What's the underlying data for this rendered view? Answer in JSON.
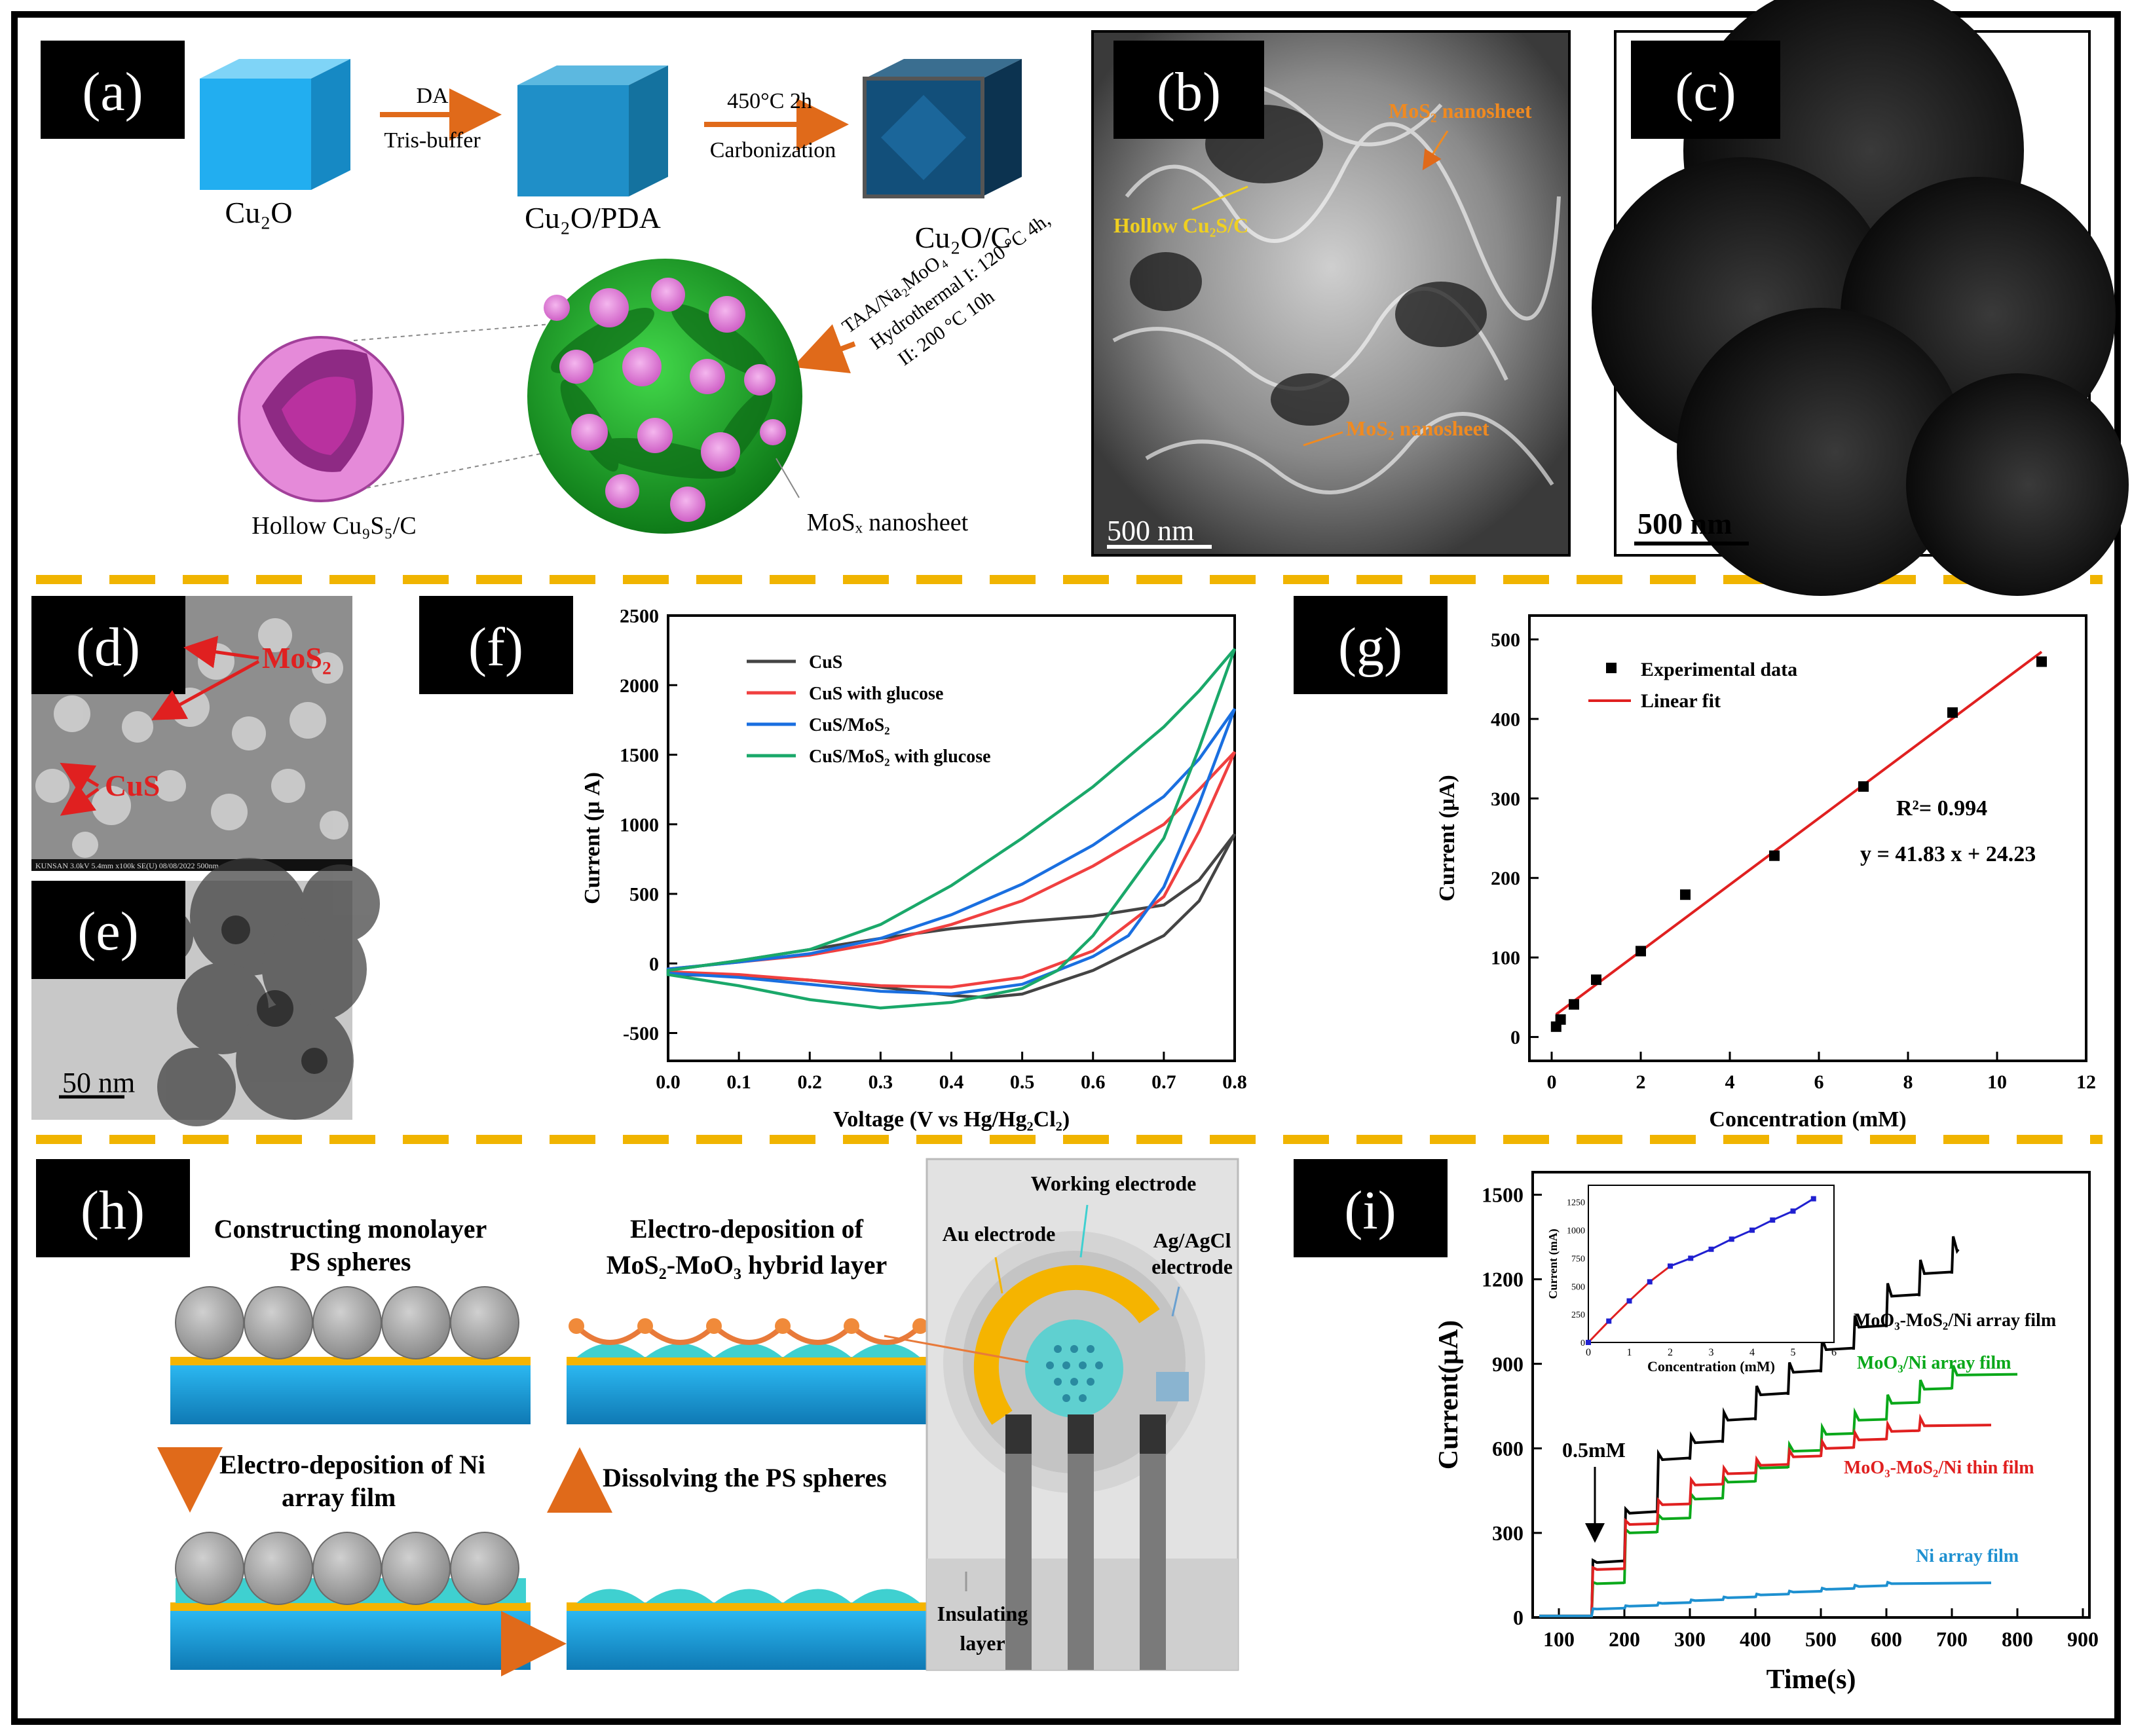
{
  "colors": {
    "panel_tag_bg": "#000000",
    "panel_tag_fg": "#ffffff",
    "divider": "#f0b400",
    "arrow_orange": "#e06a1a",
    "cube_light": "#22aef0",
    "cube_mid": "#1f8fc8",
    "cube_dark": "#124f7a",
    "mos2_green": "#1aa02a",
    "cu9s5_pink": "#e58ad9",
    "substrate_blue": "#1ba2e0",
    "au_layer": "#f5b400",
    "ps_grey": "#9e9e9e",
    "cyan_fill": "#3fd0d0",
    "red_fit": "#e02020",
    "cv_black": "#444444",
    "cv_red": "#f04040",
    "cv_blue": "#1a6fe0",
    "cv_green": "#1aa86a",
    "it_black": "#000000",
    "it_green": "#0aa81a",
    "it_red": "#e02020",
    "it_blue": "#1e90d0",
    "inset_line": "#2020d0"
  },
  "panels": {
    "a": {
      "tag": "(a)",
      "step1_top": "DA",
      "step1_bottom": "Tris-buffer",
      "step2_top": "450°C 2h",
      "step2_bottom": "Carbonization",
      "label_cu2o": "Cu₂O",
      "label_cu2o_pda": "Cu₂O/PDA",
      "label_cu2o_c": "Cu₂O/C",
      "step3_line1": "TAA/Na₂MoO₄",
      "step3_line2": "Hydrothermal  I: 120 °C 4h,",
      "step3_line3": "II: 200 °C 10h",
      "label_hollow": "Hollow Cu₉S₅/C",
      "label_mosx": "MoSₓ nanosheet"
    },
    "b": {
      "tag": "(b)",
      "ann1": "MoS₂ nanosheet",
      "ann2": "Hollow Cu₂S/C",
      "ann3": "MoS₂ nanosheet",
      "scale": "500 nm"
    },
    "c": {
      "tag": "(c)",
      "scale": "500 nm"
    },
    "d": {
      "tag": "(d)",
      "ann_mos2": "MoS₂",
      "ann_cus": "CuS",
      "footer": "KUNSAN 3.0kV 5.4mm x100k SE(U) 08/08/2022                      500nm"
    },
    "e": {
      "tag": "(e)",
      "scale": "50  nm"
    },
    "f": {
      "tag": "(f)"
    },
    "g": {
      "tag": "(g)"
    },
    "h": {
      "tag": "(h)",
      "step1_l1": "Constructing monolayer",
      "step1_l2": "PS spheres",
      "step2_l1": "Electro-deposition of Ni",
      "step2_l2": "array film",
      "step3": "Dissolving the PS spheres",
      "step4_l1": "Electro-deposition of",
      "step4_l2": "MoS₂-MoO₃ hybrid layer",
      "elec_working": "Working electrode",
      "elec_au": "Au electrode",
      "elec_ag_l1": "Ag/AgCl",
      "elec_ag_l2": "electrode",
      "elec_ins_l1": "Insulating",
      "elec_ins_l2": "layer"
    },
    "i": {
      "tag": "(i)"
    }
  },
  "chart_data": [
    {
      "id": "f",
      "type": "line",
      "xlabel": "Voltage (V vs Hg/Hg₂Cl₂)",
      "ylabel": "Current (μ A)",
      "xlim": [
        0.0,
        0.8
      ],
      "ylim": [
        -700,
        2500
      ],
      "xticks": [
        "0.0",
        "0.1",
        "0.2",
        "0.3",
        "0.4",
        "0.5",
        "0.6",
        "0.7",
        "0.8"
      ],
      "yticks": [
        "-500",
        "0",
        "500",
        "1000",
        "1500",
        "2000",
        "2500"
      ],
      "legend_position": "top-left",
      "series": [
        {
          "name": "CuS",
          "color": "#444444",
          "upper": [
            [
              0,
              -50
            ],
            [
              0.1,
              20
            ],
            [
              0.2,
              100
            ],
            [
              0.3,
              180
            ],
            [
              0.4,
              250
            ],
            [
              0.5,
              300
            ],
            [
              0.6,
              340
            ],
            [
              0.7,
              420
            ],
            [
              0.75,
              600
            ],
            [
              0.8,
              930
            ]
          ],
          "lower": [
            [
              0.8,
              930
            ],
            [
              0.75,
              450
            ],
            [
              0.7,
              200
            ],
            [
              0.6,
              -50
            ],
            [
              0.5,
              -220
            ],
            [
              0.45,
              -245
            ],
            [
              0.4,
              -230
            ],
            [
              0.3,
              -170
            ],
            [
              0.2,
              -120
            ],
            [
              0.1,
              -90
            ],
            [
              0,
              -80
            ]
          ]
        },
        {
          "name": "CuS with glucose",
          "color": "#f04040",
          "upper": [
            [
              0,
              -40
            ],
            [
              0.1,
              10
            ],
            [
              0.2,
              60
            ],
            [
              0.3,
              150
            ],
            [
              0.4,
              280
            ],
            [
              0.5,
              450
            ],
            [
              0.6,
              700
            ],
            [
              0.7,
              1000
            ],
            [
              0.75,
              1250
            ],
            [
              0.8,
              1520
            ]
          ],
          "lower": [
            [
              0.8,
              1520
            ],
            [
              0.75,
              950
            ],
            [
              0.7,
              480
            ],
            [
              0.6,
              90
            ],
            [
              0.5,
              -100
            ],
            [
              0.4,
              -170
            ],
            [
              0.3,
              -160
            ],
            [
              0.2,
              -120
            ],
            [
              0.1,
              -80
            ],
            [
              0,
              -60
            ]
          ]
        },
        {
          "name": "CuS/MoS₂",
          "color": "#1a6fe0",
          "upper": [
            [
              0,
              -40
            ],
            [
              0.1,
              10
            ],
            [
              0.2,
              70
            ],
            [
              0.3,
              180
            ],
            [
              0.4,
              350
            ],
            [
              0.5,
              570
            ],
            [
              0.6,
              850
            ],
            [
              0.7,
              1200
            ],
            [
              0.75,
              1470
            ],
            [
              0.8,
              1830
            ]
          ],
          "lower": [
            [
              0.8,
              1830
            ],
            [
              0.75,
              1150
            ],
            [
              0.7,
              550
            ],
            [
              0.65,
              200
            ],
            [
              0.6,
              50
            ],
            [
              0.5,
              -150
            ],
            [
              0.4,
              -220
            ],
            [
              0.3,
              -200
            ],
            [
              0.2,
              -150
            ],
            [
              0.1,
              -100
            ],
            [
              0,
              -70
            ]
          ]
        },
        {
          "name": "CuS/MoS₂ with glucose",
          "color": "#1aa86a",
          "upper": [
            [
              0,
              -50
            ],
            [
              0.1,
              20
            ],
            [
              0.2,
              100
            ],
            [
              0.3,
              280
            ],
            [
              0.4,
              560
            ],
            [
              0.5,
              900
            ],
            [
              0.6,
              1270
            ],
            [
              0.7,
              1700
            ],
            [
              0.75,
              1960
            ],
            [
              0.8,
              2260
            ]
          ],
          "lower": [
            [
              0.8,
              2260
            ],
            [
              0.75,
              1550
            ],
            [
              0.7,
              900
            ],
            [
              0.6,
              200
            ],
            [
              0.55,
              -50
            ],
            [
              0.5,
              -180
            ],
            [
              0.4,
              -280
            ],
            [
              0.3,
              -320
            ],
            [
              0.2,
              -260
            ],
            [
              0.1,
              -160
            ],
            [
              0,
              -80
            ]
          ]
        }
      ]
    },
    {
      "id": "g",
      "type": "scatter",
      "xlabel": "Concentration (mM)",
      "ylabel": "Current (μA)",
      "xlim": [
        -0.5,
        12
      ],
      "ylim": [
        -30,
        530
      ],
      "xticks": [
        "0",
        "2",
        "4",
        "6",
        "8",
        "10",
        "12"
      ],
      "yticks": [
        "0",
        "100",
        "200",
        "300",
        "400",
        "500"
      ],
      "legend_position": "top-left",
      "points_name": "Experimental data",
      "fit_name": "Linear fit",
      "r2_label": "R²= 0.994",
      "eq_label": "y = 41.83 x + 24.23",
      "points": [
        [
          0.1,
          13
        ],
        [
          0.2,
          22
        ],
        [
          0.5,
          41
        ],
        [
          1,
          72
        ],
        [
          2,
          108
        ],
        [
          3,
          179
        ],
        [
          5,
          228
        ],
        [
          7,
          315
        ],
        [
          9,
          408
        ],
        [
          11,
          472
        ]
      ],
      "fit": {
        "slope": 41.83,
        "intercept": 24.23,
        "x_range": [
          0.1,
          11
        ]
      }
    },
    {
      "id": "i",
      "type": "line",
      "xlabel": "Time(s)",
      "ylabel": "Current(μA)",
      "xlim": [
        60,
        910
      ],
      "ylim": [
        0,
        1580
      ],
      "xticks": [
        "100",
        "200",
        "300",
        "400",
        "500",
        "600",
        "700",
        "800",
        "900"
      ],
      "yticks": [
        "0",
        "300",
        "600",
        "900",
        "1200",
        "1500"
      ],
      "first_addition_label": "0.5mM",
      "series": [
        {
          "name": "MoO₃-MoS₂/Ni array film",
          "color": "#000000",
          "steps": [
            [
              150,
              195
            ],
            [
              200,
              370
            ],
            [
              250,
              560
            ],
            [
              300,
              620
            ],
            [
              350,
              700
            ],
            [
              400,
              790
            ],
            [
              450,
              870
            ],
            [
              500,
              950
            ],
            [
              550,
              1030
            ],
            [
              600,
              1140
            ],
            [
              650,
              1220
            ],
            [
              700,
              1300
            ]
          ],
          "end": 710
        },
        {
          "name": "MoO₃/Ni array film",
          "color": "#0aa81a",
          "steps": [
            [
              150,
              120
            ],
            [
              200,
              300
            ],
            [
              250,
              350
            ],
            [
              300,
              420
            ],
            [
              350,
              480
            ],
            [
              400,
              530
            ],
            [
              450,
              590
            ],
            [
              500,
              650
            ],
            [
              550,
              700
            ],
            [
              600,
              760
            ],
            [
              650,
              810
            ],
            [
              700,
              860
            ]
          ],
          "end": 800
        },
        {
          "name": "MoO₃-MoS₂/Ni thin film",
          "color": "#e02020",
          "steps": [
            [
              150,
              170
            ],
            [
              200,
              330
            ],
            [
              250,
              400
            ],
            [
              300,
              470
            ],
            [
              350,
              510
            ],
            [
              400,
              540
            ],
            [
              450,
              570
            ],
            [
              500,
              600
            ],
            [
              550,
              630
            ],
            [
              600,
              660
            ],
            [
              650,
              680
            ]
          ],
          "end": 760
        },
        {
          "name": "Ni array film",
          "color": "#1e90d0",
          "steps": [
            [
              150,
              30
            ],
            [
              200,
              40
            ],
            [
              250,
              50
            ],
            [
              300,
              60
            ],
            [
              350,
              70
            ],
            [
              400,
              80
            ],
            [
              450,
              90
            ],
            [
              500,
              100
            ],
            [
              550,
              110
            ],
            [
              600,
              120
            ]
          ],
          "end": 760
        }
      ],
      "inset": {
        "xlabel": "Concentration  (mM)",
        "ylabel": "Current (mA)",
        "xticks": [
          "0",
          "1",
          "2",
          "3",
          "4",
          "5",
          "6"
        ],
        "yticks": [
          "0",
          "250",
          "500",
          "750",
          "1000",
          "1250"
        ],
        "points": [
          [
            0,
            0
          ],
          [
            0.5,
            190
          ],
          [
            1,
            370
          ],
          [
            1.5,
            540
          ],
          [
            2,
            680
          ],
          [
            2.5,
            750
          ],
          [
            3,
            830
          ],
          [
            3.5,
            920
          ],
          [
            4,
            1000
          ],
          [
            4.5,
            1090
          ],
          [
            5,
            1170
          ],
          [
            5.5,
            1280
          ]
        ]
      }
    }
  ]
}
